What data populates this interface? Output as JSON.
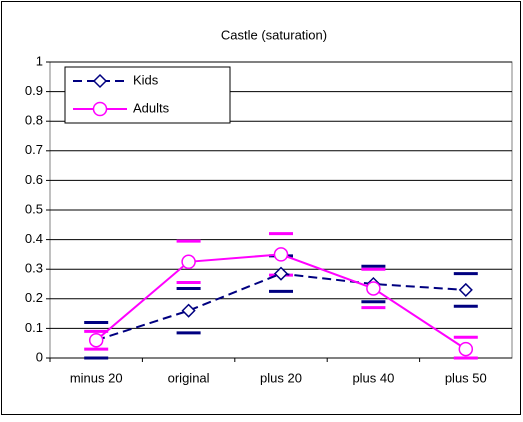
{
  "chart_data": {
    "type": "line",
    "title": "Castle (saturation)",
    "categories": [
      "minus 20",
      "original",
      "plus 20",
      "plus 40",
      "plus 50"
    ],
    "series": [
      {
        "name": "Kids",
        "color": "#000080",
        "dash": true,
        "marker": "diamond",
        "values": [
          0.06,
          0.16,
          0.285,
          0.25,
          0.23
        ],
        "errors": [
          0.06,
          0.075,
          0.06,
          0.06,
          0.055
        ]
      },
      {
        "name": "Adults",
        "color": "#ff00ff",
        "dash": false,
        "marker": "circle",
        "values": [
          0.06,
          0.325,
          0.35,
          0.235,
          0.03
        ],
        "errors": [
          0.03,
          0.07,
          0.07,
          0.065,
          0.04
        ]
      }
    ],
    "ylim": [
      0,
      1
    ],
    "yticks": [
      0,
      0.1,
      0.2,
      0.3,
      0.4,
      0.5,
      0.6,
      0.7,
      0.8,
      0.9,
      1
    ],
    "grid": true,
    "legend": "top-left"
  }
}
